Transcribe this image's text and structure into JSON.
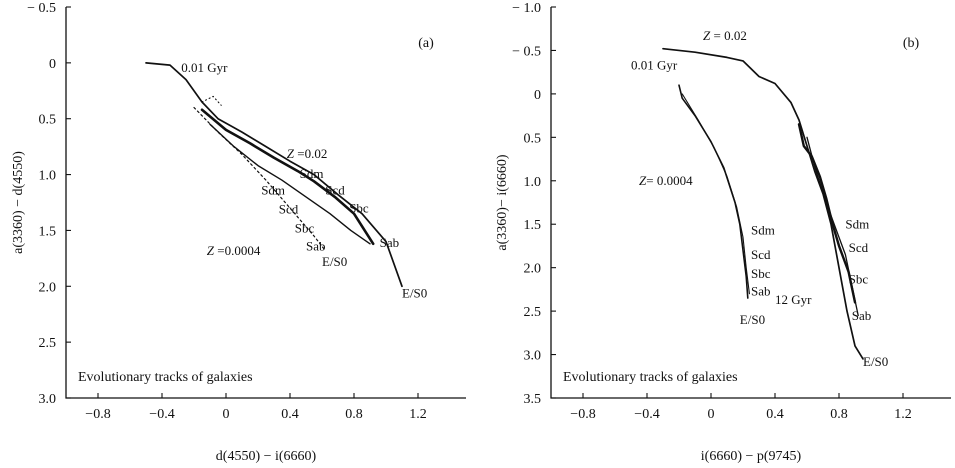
{
  "colors": {
    "ink": "#111111",
    "background": "#ffffff"
  },
  "chart_data": [
    {
      "type": "line",
      "panel_label": "(a)",
      "xlabel": "d(4550) − i(6660)",
      "ylabel": "a(3360) − d(4550)",
      "xlim": [
        -1.0,
        1.5
      ],
      "ylim": [
        3.0,
        -0.5
      ],
      "y_inverted": true,
      "xticks": [
        -0.8,
        -0.4,
        0,
        0.4,
        0.8,
        1.2
      ],
      "xtick_labels": [
        "−0.8",
        "−0.4",
        "0",
        "0.4",
        "0.8",
        "1.2"
      ],
      "yticks": [
        -0.5,
        0,
        0.5,
        1.0,
        1.5,
        2.0,
        2.5,
        3.0
      ],
      "ytick_labels": [
        "− 0.5",
        "0",
        "0.5",
        "1.0",
        "1.5",
        "2.0",
        "2.5",
        "3.0"
      ],
      "annotation": "Evolutionary tracks of galaxies",
      "series": [
        {
          "width": 1.7,
          "points": [
            [
              -0.5,
              0.0
            ],
            [
              -0.35,
              0.02
            ],
            [
              -0.25,
              0.15
            ],
            [
              -0.15,
              0.35
            ],
            [
              -0.05,
              0.5
            ],
            [
              0.1,
              0.62
            ],
            [
              0.25,
              0.75
            ],
            [
              0.4,
              0.88
            ],
            [
              0.55,
              1.0
            ],
            [
              0.7,
              1.18
            ],
            [
              0.85,
              1.35
            ],
            [
              1.0,
              1.6
            ],
            [
              1.1,
              2.0
            ]
          ]
        },
        {
          "width": 2.6,
          "points": [
            [
              -0.15,
              0.42
            ],
            [
              0.0,
              0.6
            ],
            [
              0.15,
              0.72
            ],
            [
              0.3,
              0.85
            ],
            [
              0.45,
              0.97
            ],
            [
              0.55,
              1.06
            ],
            [
              0.68,
              1.2
            ],
            [
              0.8,
              1.35
            ],
            [
              0.92,
              1.62
            ]
          ]
        },
        {
          "width": 1.4,
          "points": [
            [
              -0.1,
              0.55
            ],
            [
              0.05,
              0.75
            ],
            [
              0.2,
              0.92
            ],
            [
              0.35,
              1.05
            ],
            [
              0.5,
              1.2
            ],
            [
              0.65,
              1.35
            ],
            [
              0.78,
              1.5
            ],
            [
              0.9,
              1.62
            ]
          ]
        },
        {
          "width": 1.2,
          "dash": "2,3",
          "points": [
            [
              -0.2,
              0.4
            ],
            [
              -0.05,
              0.62
            ],
            [
              0.1,
              0.82
            ],
            [
              0.25,
              1.05
            ],
            [
              0.4,
              1.3
            ],
            [
              0.55,
              1.55
            ],
            [
              0.62,
              1.68
            ]
          ]
        },
        {
          "width": 1.1,
          "dash": "1,3",
          "points": [
            [
              -0.15,
              0.35
            ],
            [
              -0.08,
              0.3
            ],
            [
              -0.03,
              0.38
            ]
          ]
        }
      ],
      "labels": [
        {
          "text": "0.01 Gyr",
          "x": -0.28,
          "y": 0.08
        },
        {
          "text": "Z =0.02",
          "x": 0.38,
          "y": 0.85
        },
        {
          "text": "Sdm",
          "x": 0.46,
          "y": 1.03
        },
        {
          "text": "Scd",
          "x": 0.62,
          "y": 1.18
        },
        {
          "text": "Sbc",
          "x": 0.77,
          "y": 1.34
        },
        {
          "text": "Sab",
          "x": 0.96,
          "y": 1.65
        },
        {
          "text": "E/S0",
          "x": 1.1,
          "y": 2.1
        },
        {
          "text": "Sdm",
          "x": 0.22,
          "y": 1.18
        },
        {
          "text": "Scd",
          "x": 0.33,
          "y": 1.35
        },
        {
          "text": "Sbc",
          "x": 0.43,
          "y": 1.52
        },
        {
          "text": "Sab",
          "x": 0.5,
          "y": 1.68
        },
        {
          "text": "E/S0",
          "x": 0.6,
          "y": 1.82
        },
        {
          "text": "Z =0.0004",
          "x": -0.12,
          "y": 1.72
        }
      ]
    },
    {
      "type": "line",
      "panel_label": "(b)",
      "xlabel": "i(6660) − p(9745)",
      "ylabel": "a(3360)− i(6660)",
      "xlim": [
        -1.0,
        1.5
      ],
      "ylim": [
        3.5,
        -1.0
      ],
      "y_inverted": true,
      "xticks": [
        -0.8,
        -0.4,
        0,
        0.4,
        0.8,
        1.2
      ],
      "xtick_labels": [
        "−0.8",
        "−0.4",
        "0",
        "0.4",
        "0.8",
        "1.2"
      ],
      "yticks": [
        -1.0,
        -0.5,
        0,
        0.5,
        1.0,
        1.5,
        2.0,
        2.5,
        3.0,
        3.5
      ],
      "ytick_labels": [
        "− 1.0",
        "− 0.5",
        "0",
        "0.5",
        "1.0",
        "1.5",
        "2.0",
        "2.5",
        "3.0",
        "3.5"
      ],
      "annotation": "Evolutionary tracks of galaxies",
      "series": [
        {
          "width": 1.7,
          "points": [
            [
              -0.3,
              -0.52
            ],
            [
              -0.1,
              -0.48
            ],
            [
              0.1,
              -0.42
            ],
            [
              0.2,
              -0.38
            ],
            [
              0.3,
              -0.2
            ],
            [
              0.4,
              -0.12
            ],
            [
              0.5,
              0.1
            ],
            [
              0.55,
              0.3
            ],
            [
              0.6,
              0.6
            ],
            [
              0.65,
              0.9
            ],
            [
              0.7,
              1.15
            ],
            [
              0.75,
              1.5
            ],
            [
              0.8,
              2.0
            ],
            [
              0.85,
              2.5
            ],
            [
              0.9,
              2.9
            ],
            [
              0.95,
              3.05
            ]
          ]
        },
        {
          "width": 2.4,
          "points": [
            [
              0.55,
              0.35
            ],
            [
              0.58,
              0.6
            ],
            [
              0.63,
              0.72
            ],
            [
              0.68,
              0.95
            ],
            [
              0.72,
              1.2
            ],
            [
              0.76,
              1.5
            ],
            [
              0.8,
              1.75
            ],
            [
              0.86,
              2.05
            ],
            [
              0.9,
              2.4
            ]
          ]
        },
        {
          "width": 1.3,
          "points": [
            [
              0.6,
              0.5
            ],
            [
              0.65,
              0.85
            ],
            [
              0.72,
              1.25
            ],
            [
              0.78,
              1.55
            ],
            [
              0.84,
              1.85
            ],
            [
              0.88,
              2.2
            ],
            [
              0.92,
              2.55
            ]
          ]
        },
        {
          "width": 1.6,
          "points": [
            [
              -0.2,
              -0.1
            ],
            [
              -0.18,
              0.05
            ],
            [
              -0.1,
              0.25
            ],
            [
              0.0,
              0.55
            ],
            [
              0.08,
              0.85
            ],
            [
              0.15,
              1.25
            ],
            [
              0.18,
              1.5
            ],
            [
              0.2,
              1.8
            ],
            [
              0.22,
              2.1
            ],
            [
              0.23,
              2.35
            ]
          ]
        },
        {
          "width": 1.1,
          "points": [
            [
              -0.18,
              0.0
            ],
            [
              -0.08,
              0.3
            ],
            [
              0.02,
              0.62
            ],
            [
              0.1,
              0.95
            ],
            [
              0.16,
              1.3
            ],
            [
              0.2,
              1.65
            ],
            [
              0.22,
              2.0
            ],
            [
              0.24,
              2.3
            ]
          ]
        }
      ],
      "labels": [
        {
          "text": "Z = 0.02",
          "x": -0.05,
          "y": -0.62
        },
        {
          "text": "0.01 Gyr",
          "x": -0.5,
          "y": -0.28
        },
        {
          "text": "Z= 0.0004",
          "x": -0.45,
          "y": 1.05
        },
        {
          "text": "Sdm",
          "x": 0.25,
          "y": 1.62
        },
        {
          "text": "Scd",
          "x": 0.25,
          "y": 1.9
        },
        {
          "text": "Sbc",
          "x": 0.25,
          "y": 2.12
        },
        {
          "text": "Sab",
          "x": 0.25,
          "y": 2.32
        },
        {
          "text": "E/S0",
          "x": 0.18,
          "y": 2.65
        },
        {
          "text": "Sdm",
          "x": 0.84,
          "y": 1.55
        },
        {
          "text": "Scd",
          "x": 0.86,
          "y": 1.82
        },
        {
          "text": "Sbc",
          "x": 0.86,
          "y": 2.18
        },
        {
          "text": "12 Gyr",
          "x": 0.4,
          "y": 2.42
        },
        {
          "text": "Sab",
          "x": 0.88,
          "y": 2.6
        },
        {
          "text": "E/S0",
          "x": 0.95,
          "y": 3.13
        }
      ]
    }
  ]
}
